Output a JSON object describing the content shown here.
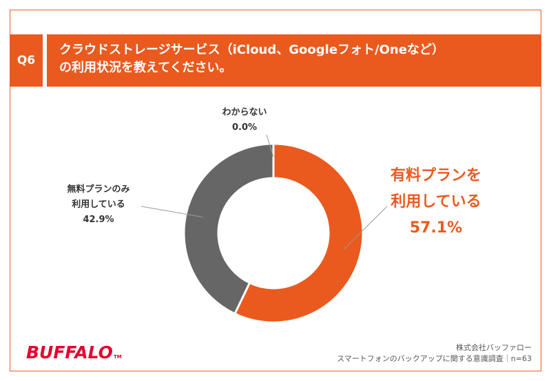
{
  "header": {
    "badge": "Q6",
    "title_line1": "クラウドストレージサービス（iCloud、Googleフォト/Oneなど）",
    "title_line2": "の利用状況を教えてください。"
  },
  "chart_data": {
    "type": "pie",
    "donut": true,
    "slices": [
      {
        "name_line1": "わからない",
        "name_line2": "",
        "value": 0.0,
        "value_label": "0.0%",
        "color": "#595959"
      },
      {
        "name_line1": "有料プランを",
        "name_line2": "利用している",
        "value": 57.1,
        "value_label": "57.1%",
        "color": "#ea5a1e"
      },
      {
        "name_line1": "無料プランのみ",
        "name_line2": "利用している",
        "value": 42.9,
        "value_label": "42.9%",
        "color": "#666666"
      }
    ]
  },
  "footer": {
    "company": "株式会社バッファロー",
    "survey": "スマートフォンのバックアップに関する意識調査｜n=63"
  },
  "brand": {
    "logo_text": "BUFFALO",
    "logo_mark": "TM",
    "accent": "#ea5a1e",
    "logo_color": "#e6002d"
  }
}
